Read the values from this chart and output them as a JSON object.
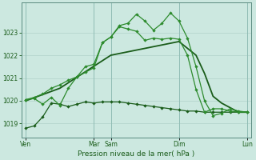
{
  "background_color": "#cce8e0",
  "grid_color": "#b8d8d0",
  "line_color_dark": "#1a5c1a",
  "line_color_medium": "#2d8b2d",
  "xlabel": "Pression niveau de la mer( hPa )",
  "ylim": [
    1018.4,
    1024.3
  ],
  "yticks": [
    1019,
    1020,
    1021,
    1022,
    1023
  ],
  "xtick_labels": [
    "Ven",
    "Mar",
    "Sam",
    "Dim",
    "Lun"
  ],
  "xtick_positions": [
    0,
    8,
    10,
    18,
    26
  ],
  "series1_x": [
    0,
    1,
    2,
    3,
    4,
    5,
    6,
    7,
    8,
    9,
    10,
    11,
    12,
    13,
    14,
    15,
    16,
    17,
    18,
    19,
    20,
    21,
    22,
    23,
    24,
    25,
    26
  ],
  "series1_y": [
    1018.8,
    1018.9,
    1019.3,
    1019.9,
    1019.85,
    1019.75,
    1019.85,
    1019.95,
    1019.9,
    1019.95,
    1019.95,
    1019.95,
    1019.9,
    1019.85,
    1019.8,
    1019.75,
    1019.7,
    1019.65,
    1019.6,
    1019.55,
    1019.55,
    1019.5,
    1019.5,
    1019.5,
    1019.5,
    1019.5,
    1019.5
  ],
  "series2_x": [
    0,
    1,
    2,
    3,
    4,
    5,
    6,
    7,
    8,
    9,
    10,
    11,
    12,
    13,
    14,
    15,
    16,
    17,
    18,
    19,
    20,
    21,
    22,
    23,
    24,
    25,
    26
  ],
  "series2_y": [
    1020.05,
    1020.1,
    1019.85,
    1020.15,
    1019.8,
    1020.55,
    1021.05,
    1021.5,
    1021.6,
    1022.55,
    1022.8,
    1023.25,
    1023.15,
    1023.05,
    1022.65,
    1022.75,
    1022.7,
    1022.75,
    1022.7,
    1022.0,
    1020.5,
    1019.5,
    1019.65,
    1019.65,
    1019.55,
    1019.5,
    1019.5
  ],
  "series3_x": [
    0,
    1,
    2,
    3,
    4,
    5,
    6,
    7,
    8,
    9,
    10,
    11,
    12,
    13,
    14,
    15,
    16,
    17,
    18,
    19,
    20,
    21,
    22,
    23,
    24,
    25,
    26
  ],
  "series3_y": [
    1020.05,
    1020.15,
    1020.3,
    1020.55,
    1020.7,
    1020.9,
    1021.05,
    1021.25,
    1021.45,
    1022.55,
    1022.8,
    1023.3,
    1023.4,
    1023.8,
    1023.5,
    1023.1,
    1023.4,
    1023.85,
    1023.5,
    1022.75,
    1021.5,
    1020.0,
    1019.35,
    1019.45,
    1019.65,
    1019.55,
    1019.5
  ],
  "series4_x": [
    0,
    4,
    10,
    18,
    20,
    21,
    22,
    23,
    24,
    25,
    26
  ],
  "series4_y": [
    1020.0,
    1020.55,
    1022.0,
    1022.6,
    1022.0,
    1021.2,
    1020.2,
    1019.9,
    1019.7,
    1019.5,
    1019.5
  ]
}
